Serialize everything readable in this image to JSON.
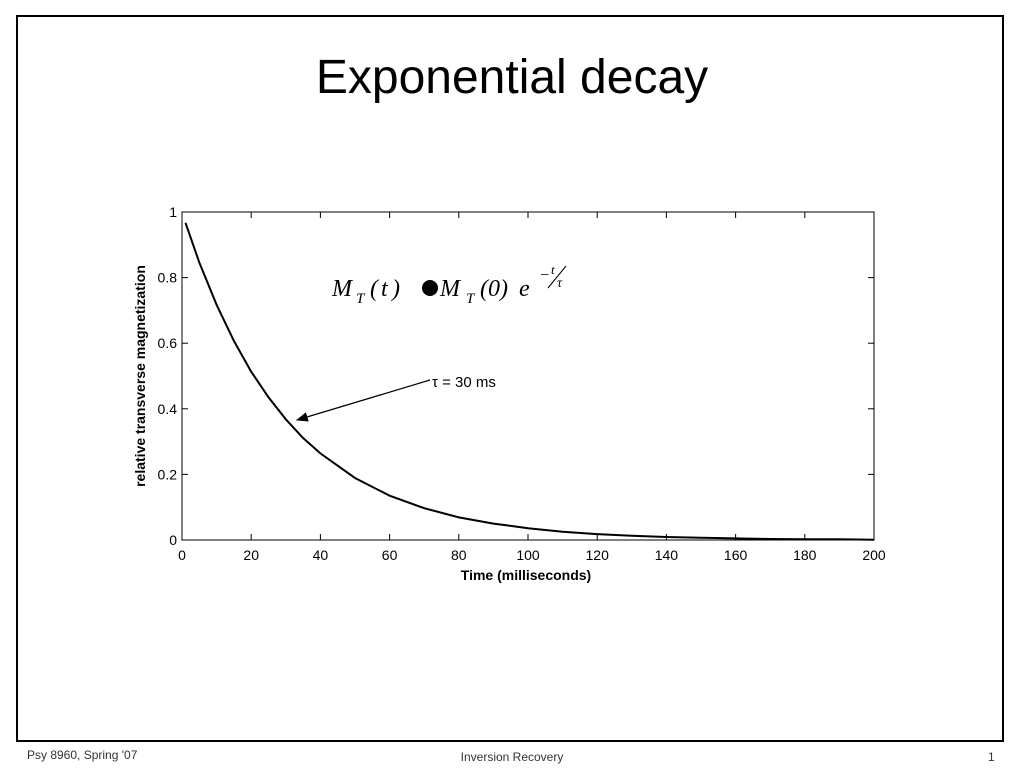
{
  "slide": {
    "title": "Exponential decay",
    "footer_left": "Psy 8960, Spring '07",
    "footer_center": "Inversion Recovery",
    "footer_right": "1"
  },
  "chart_data": {
    "type": "line",
    "title": "",
    "xlabel": "Time (milliseconds)",
    "ylabel": "relative transverse magnetization",
    "xlim": [
      0,
      200
    ],
    "ylim": [
      0,
      1
    ],
    "x_ticks": [
      0,
      20,
      40,
      60,
      80,
      100,
      120,
      140,
      160,
      180,
      200
    ],
    "y_ticks": [
      0,
      0.2,
      0.4,
      0.6,
      0.8,
      1
    ],
    "x_tick_labels": [
      "0",
      "20",
      "40",
      "60",
      "80",
      "100",
      "120",
      "140",
      "160",
      "180",
      "200"
    ],
    "y_tick_labels": [
      "0",
      "0.2",
      "0.4",
      "0.6",
      "0.8",
      "1"
    ],
    "grid": false,
    "legend": "none",
    "series": [
      {
        "x": [
          1,
          5,
          10,
          15,
          20,
          25,
          30,
          35,
          40,
          50,
          60,
          70,
          80,
          90,
          100,
          110,
          120,
          130,
          140,
          150,
          160,
          170,
          180,
          190,
          200
        ],
        "y": [
          0.967,
          0.846,
          0.717,
          0.607,
          0.513,
          0.435,
          0.368,
          0.311,
          0.264,
          0.189,
          0.135,
          0.097,
          0.069,
          0.05,
          0.036,
          0.025,
          0.018,
          0.013,
          0.009,
          0.007,
          0.005,
          0.003,
          0.002,
          0.002,
          0.001
        ],
        "color": "#000000"
      }
    ],
    "annotations": {
      "equation": "M_T(t) = M_T(0) e^{-t/τ}",
      "arrow_label": "τ = 30 ms",
      "arrow_target": {
        "x": 33,
        "y": 0.36
      }
    }
  }
}
